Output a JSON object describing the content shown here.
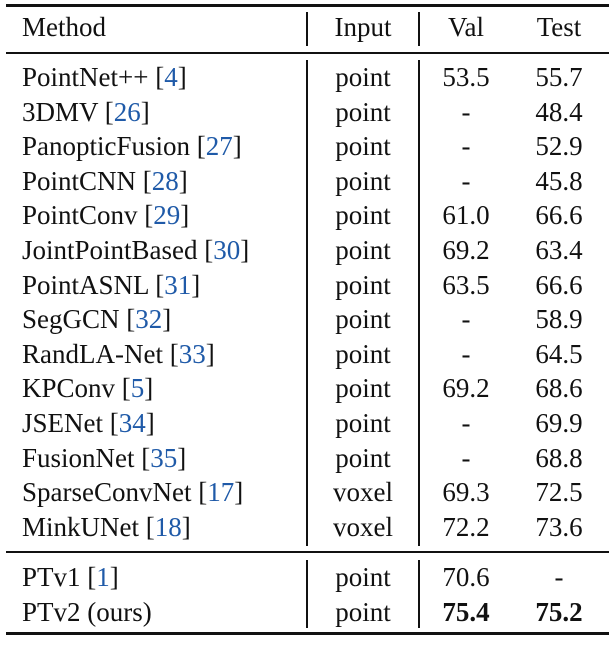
{
  "header": {
    "method": "Method",
    "input": "Input",
    "val": "Val",
    "test": "Test"
  },
  "colors": {
    "citation": "#1f5aa8",
    "text": "#111111"
  },
  "rows": [
    {
      "name": "PointNet++",
      "ref": "4",
      "input": "point",
      "val": "53.5",
      "test": "55.7"
    },
    {
      "name": "3DMV",
      "ref": "26",
      "input": "point",
      "val": "-",
      "test": "48.4"
    },
    {
      "name": "PanopticFusion",
      "ref": "27",
      "input": "point",
      "val": "-",
      "test": "52.9"
    },
    {
      "name": "PointCNN",
      "ref": "28",
      "input": "point",
      "val": "-",
      "test": "45.8"
    },
    {
      "name": "PointConv",
      "ref": "29",
      "input": "point",
      "val": "61.0",
      "test": "66.6"
    },
    {
      "name": "JointPointBased",
      "ref": "30",
      "input": "point",
      "val": "69.2",
      "test": "63.4"
    },
    {
      "name": "PointASNL",
      "ref": "31",
      "input": "point",
      "val": "63.5",
      "test": "66.6"
    },
    {
      "name": "SegGCN",
      "ref": "32",
      "input": "point",
      "val": "-",
      "test": "58.9"
    },
    {
      "name": "RandLA-Net",
      "ref": "33",
      "input": "point",
      "val": "-",
      "test": "64.5"
    },
    {
      "name": "KPConv",
      "ref": "5",
      "input": "point",
      "val": "69.2",
      "test": "68.6"
    },
    {
      "name": "JSENet",
      "ref": "34",
      "input": "point",
      "val": "-",
      "test": "69.9"
    },
    {
      "name": "FusionNet",
      "ref": "35",
      "input": "point",
      "val": "-",
      "test": "68.8"
    },
    {
      "name": "SparseConvNet",
      "ref": "17",
      "input": "voxel",
      "val": "69.3",
      "test": "72.5"
    },
    {
      "name": "MinkUNet",
      "ref": "18",
      "input": "voxel",
      "val": "72.2",
      "test": "73.6"
    }
  ],
  "ours": [
    {
      "name": "PTv1",
      "ref": "1",
      "input": "point",
      "val": "70.6",
      "test": "-",
      "bold": false
    },
    {
      "name": "PTv2 (ours)",
      "ref": "",
      "input": "point",
      "val": "75.4",
      "test": "75.2",
      "bold": true
    }
  ]
}
